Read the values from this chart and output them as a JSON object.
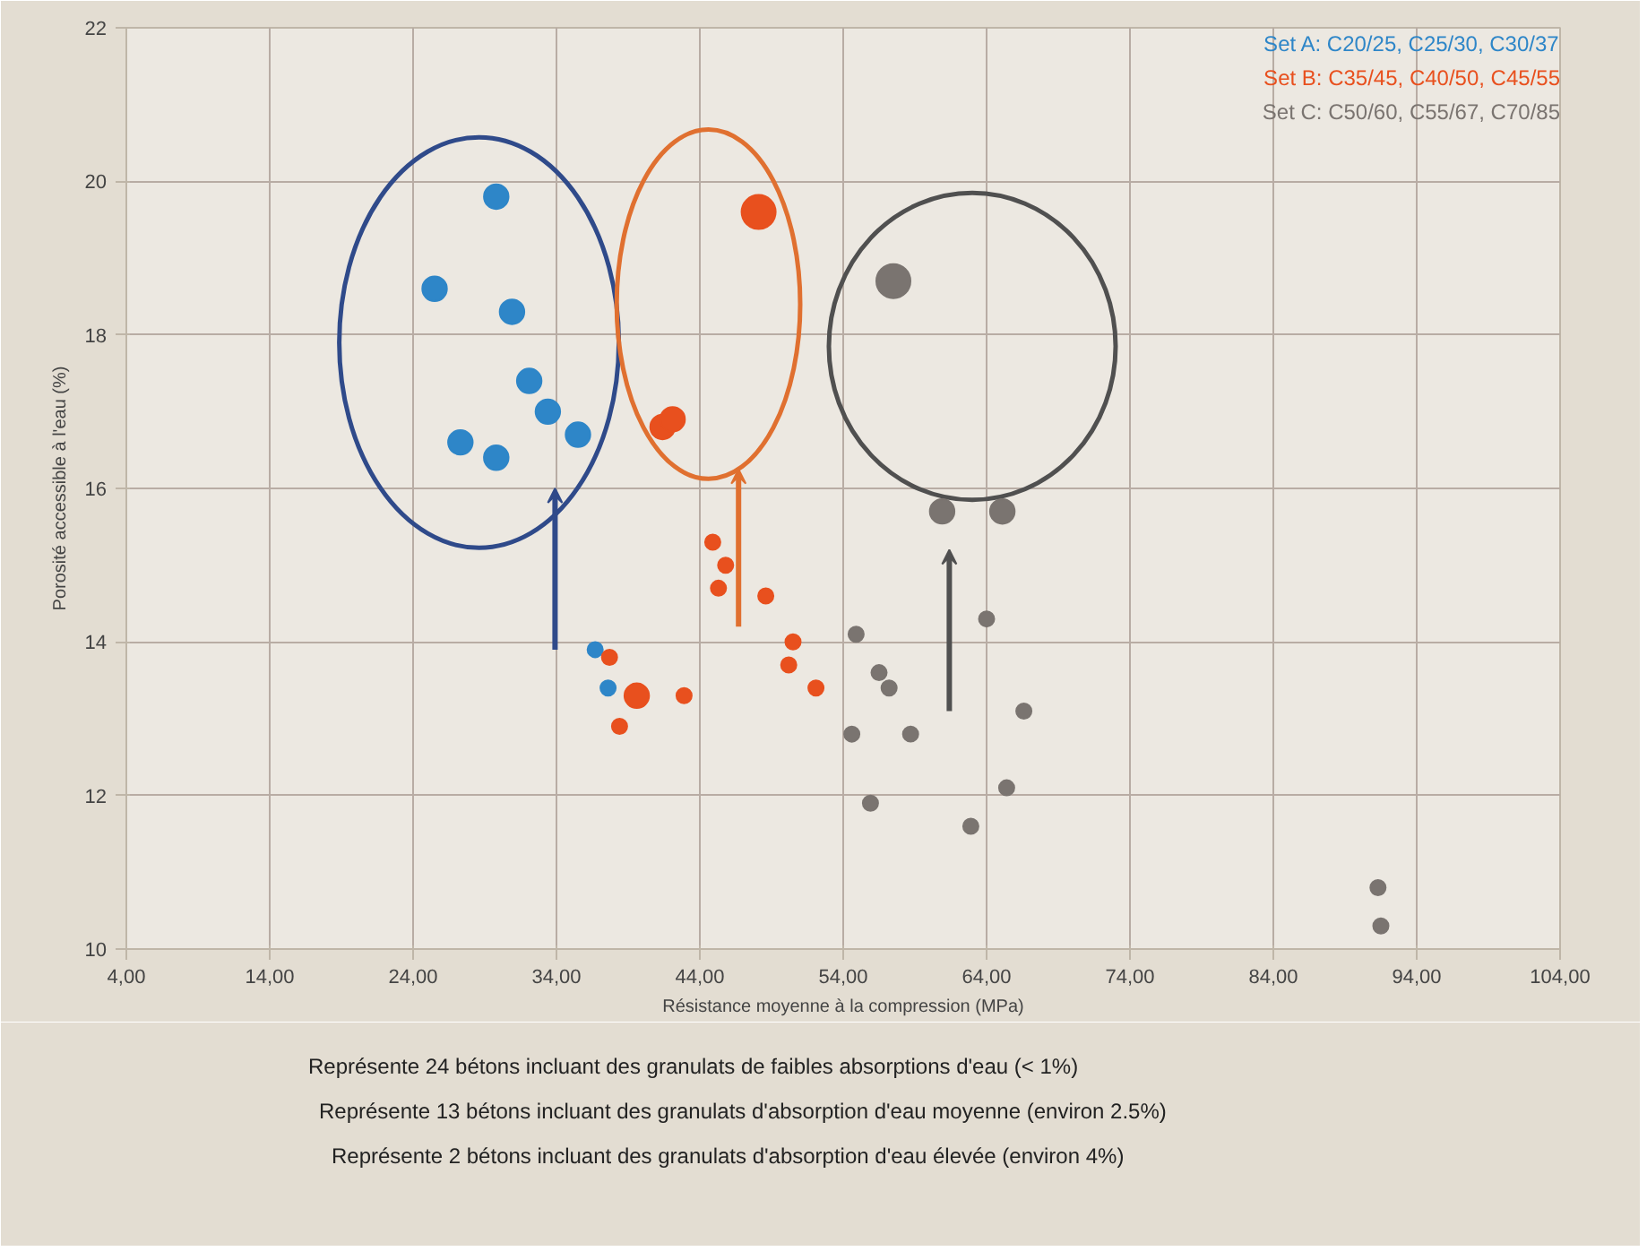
{
  "chart_data": {
    "type": "bubble",
    "xlabel": "Résistance moyenne à la compression (MPa)",
    "ylabel": "Porosité accessible à l'eau (%)",
    "xlim": [
      4,
      104
    ],
    "xticks": [
      {
        "value": 4,
        "label": "4,00"
      },
      {
        "value": 14,
        "label": "14,00"
      },
      {
        "value": 24,
        "label": "24,00"
      },
      {
        "value": 34,
        "label": "34,00"
      },
      {
        "value": 44,
        "label": "44,00"
      },
      {
        "value": 54,
        "label": "54,00"
      },
      {
        "value": 64,
        "label": "64,00"
      },
      {
        "value": 74,
        "label": "74,00"
      },
      {
        "value": 84,
        "label": "84,00"
      },
      {
        "value": 94,
        "label": "94,00"
      },
      {
        "value": 104,
        "label": "104,00"
      }
    ],
    "ylim": [
      10,
      22
    ],
    "yticks": [
      10,
      12,
      14,
      16,
      18,
      20,
      22
    ],
    "grid": true,
    "legend": "top right",
    "series": [
      {
        "name": "Set A: C20/25, C25/30, C30/37",
        "color": "#2e86c8",
        "x": [
          29.8,
          25.5,
          30.9,
          32.1,
          33.4,
          35.5,
          27.3,
          29.8,
          36.7,
          37.6
        ],
        "values": [
          19.8,
          18.6,
          18.3,
          17.4,
          17.0,
          16.7,
          16.6,
          16.4,
          13.9,
          13.4
        ],
        "sizes": [
          0.52,
          0.52,
          0.52,
          0.52,
          0.52,
          0.52,
          0.52,
          0.52,
          0.2,
          0.2
        ]
      },
      {
        "name": "Set B: C35/45, C40/50, C45/55",
        "color": "#e8501e",
        "x": [
          48.1,
          41.4,
          42.1,
          39.6,
          44.9,
          45.8,
          45.3,
          48.6,
          37.7,
          38.4,
          42.9,
          50.5,
          50.2,
          52.1
        ],
        "values": [
          19.6,
          16.8,
          16.9,
          13.3,
          15.3,
          15.0,
          14.7,
          14.6,
          13.8,
          12.9,
          13.3,
          14.0,
          13.7,
          13.4
        ],
        "sizes": [
          1,
          0.52,
          0.52,
          0.52,
          0.2,
          0.2,
          0.2,
          0.2,
          0.2,
          0.2,
          0.2,
          0.2,
          0.2,
          0.2
        ]
      },
      {
        "name": "Set C: C50/60, C55/67, C70/85",
        "color": "#7a7470",
        "x": [
          57.5,
          60.9,
          65.1,
          54.9,
          56.5,
          57.2,
          54.6,
          58.7,
          55.9,
          64.0,
          66.6,
          65.4,
          62.9,
          91.3,
          91.5
        ],
        "values": [
          18.7,
          15.7,
          15.7,
          14.1,
          13.6,
          13.4,
          12.8,
          12.8,
          11.9,
          14.3,
          13.1,
          12.1,
          11.6,
          10.8,
          10.3
        ],
        "sizes": [
          1,
          0.52,
          0.52,
          0.2,
          0.2,
          0.2,
          0.2,
          0.2,
          0.2,
          0.2,
          0.2,
          0.2,
          0.2,
          0.2,
          0.2
        ]
      }
    ],
    "annotations": [
      "Représente 24 bétons incluant des granulats de faibles absorptions d'eau (< 1%)",
      "Représente 13 bétons incluant des granulats d'absorption d'eau moyenne (environ 2.5%)",
      "Représente 2 bétons incluant des granulats d'absorption d'eau élevée (environ 4%)"
    ]
  }
}
